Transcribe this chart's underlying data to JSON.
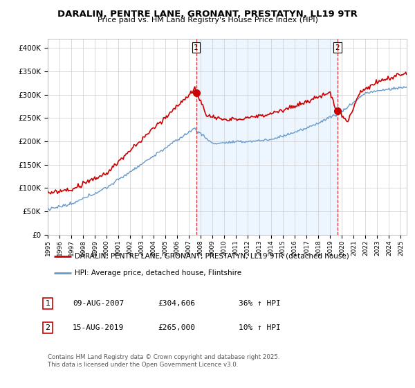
{
  "title": "DARALIN, PENTRE LANE, GRONANT, PRESTATYN, LL19 9TR",
  "subtitle": "Price paid vs. HM Land Registry's House Price Index (HPI)",
  "legend_line1": "DARALIN, PENTRE LANE, GRONANT, PRESTATYN, LL19 9TR (detached house)",
  "legend_line2": "HPI: Average price, detached house, Flintshire",
  "sale1_label": "1",
  "sale1_date": "09-AUG-2007",
  "sale1_price": "£304,606",
  "sale1_hpi": "36% ↑ HPI",
  "sale2_label": "2",
  "sale2_date": "15-AUG-2019",
  "sale2_price": "£265,000",
  "sale2_hpi": "10% ↑ HPI",
  "footnote": "Contains HM Land Registry data © Crown copyright and database right 2025.\nThis data is licensed under the Open Government Licence v3.0.",
  "sale1_year": 2007.61,
  "sale1_value": 304606,
  "sale2_year": 2019.62,
  "sale2_value": 265000,
  "red_color": "#cc0000",
  "blue_color": "#6699cc",
  "blue_fill": "#ddeeff",
  "background_color": "#ffffff",
  "grid_color": "#cccccc",
  "ylim": [
    0,
    420000
  ],
  "xlim_start": 1995,
  "xlim_end": 2025.5
}
